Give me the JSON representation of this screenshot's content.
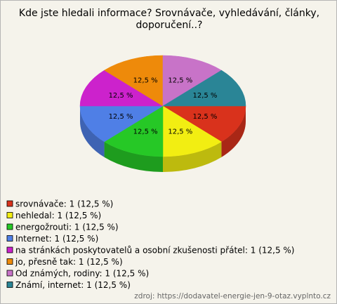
{
  "chart_data": {
    "type": "pie3d",
    "title": "Kde jste hledali informace? Srovnávače, vyhledávání, články, doporučení..?",
    "categories": [
      "srovnávače: 1 (12,5 %)",
      "nehledal: 1 (12,5 %)",
      "energožrouti: 1 (12,5 %)",
      "Internet: 1 (12,5 %)",
      "na stránkách poskytovatelů a osobní zkušenosti přátel: 1 (12,5 %)",
      "jo, přesně tak: 1 (12,5 %)",
      "Od známých, rodiny: 1 (12,5 %)",
      "Známí, internet: 1 (12,5 %)"
    ],
    "values": [
      12.5,
      12.5,
      12.5,
      12.5,
      12.5,
      12.5,
      12.5,
      12.5
    ],
    "value_labels": [
      "12,5 %",
      "12,5 %",
      "12,5 %",
      "12,5 %",
      "12,5 %",
      "12,5 %",
      "12,5 %",
      "12,5 %"
    ],
    "colors": [
      "#d9321c",
      "#f2ee12",
      "#26c826",
      "#4f7fe6",
      "#cc22cc",
      "#ee8a0a",
      "#c873c8",
      "#2a8596"
    ],
    "source": "zdroj: https://dodavatel-energie-jen-9-otaz.vyplnto.cz"
  }
}
